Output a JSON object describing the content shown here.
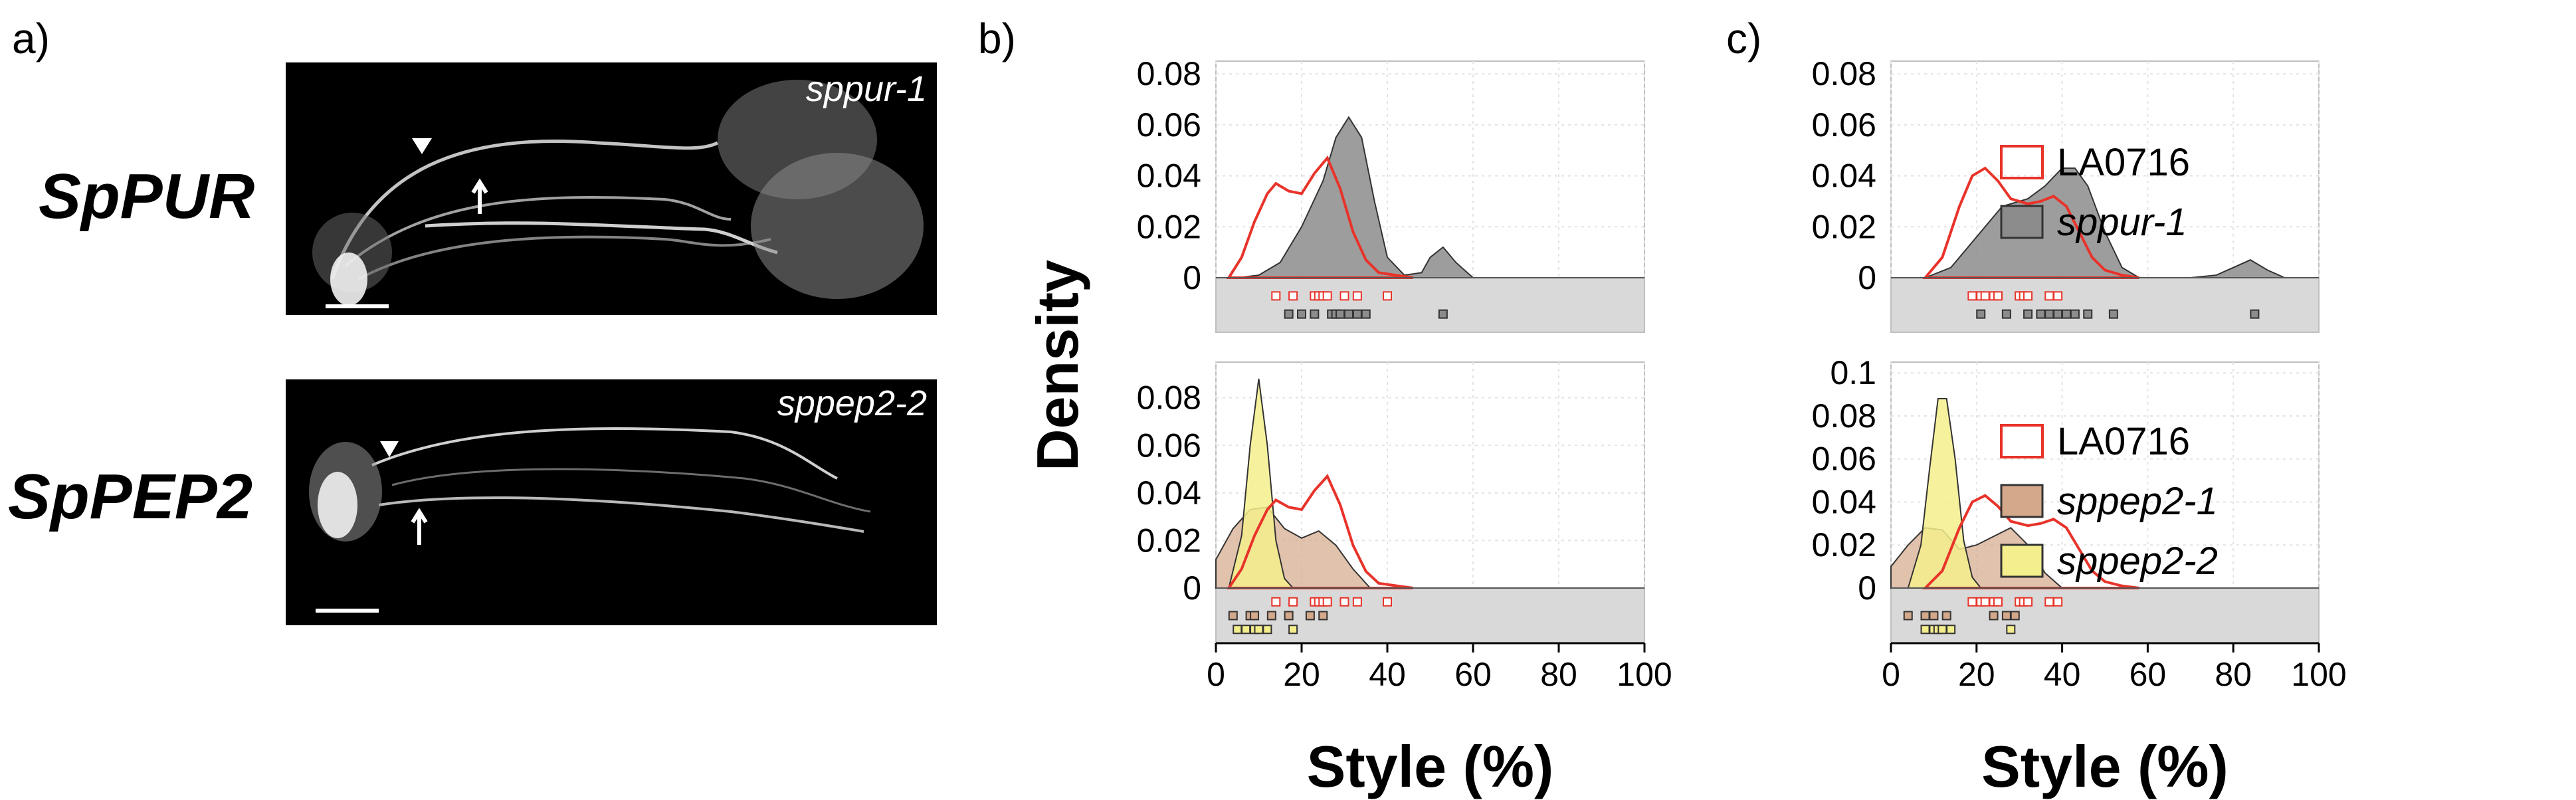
{
  "panels": {
    "a": "a)",
    "b": "b)",
    "c": "c)"
  },
  "micrographs": [
    {
      "gene": "SpPUR",
      "mutant": "sppur-1"
    },
    {
      "gene": "SpPEP2",
      "mutant": "sppep2-2"
    }
  ],
  "colors": {
    "LA0716": "#e8332a",
    "sppur-1": "#8c8c8c",
    "sppep2-1": "#d4a88a",
    "sppep2-2": "#f4ef8c",
    "strip": "#d9d9d9",
    "grid": "#e3e3e3"
  },
  "legend_top": [
    "LA0716",
    "sppur-1"
  ],
  "legend_bottom": [
    "LA0716",
    "sppep2-1",
    "sppep2-2"
  ],
  "chart_data": [
    {
      "id": "b-top",
      "type": "area",
      "xlabel": "",
      "ylabel": "Density",
      "xlim": [
        0,
        100
      ],
      "ylim": [
        0,
        0.085
      ],
      "yticks": [
        "0.08",
        "0.06",
        "0.04",
        "0.02",
        "0"
      ],
      "ytick_values": [
        0.08,
        0.06,
        0.04,
        0.02,
        0
      ],
      "series": [
        {
          "name": "sppur-1",
          "color": "#8c8c8c",
          "x": [
            5,
            10,
            15,
            20,
            25,
            28,
            31,
            34,
            37,
            40,
            44,
            48,
            50,
            53,
            56,
            60
          ],
          "y": [
            0,
            0.001,
            0.006,
            0.02,
            0.038,
            0.055,
            0.063,
            0.055,
            0.03,
            0.008,
            0.001,
            0.002,
            0.008,
            0.012,
            0.006,
            0
          ]
        },
        {
          "name": "LA0716",
          "color": "#e8332a",
          "x": [
            3,
            6,
            9,
            12,
            14,
            17,
            20,
            23,
            26,
            29,
            32,
            35,
            38,
            42,
            46
          ],
          "y": [
            0,
            0.008,
            0.022,
            0.033,
            0.037,
            0.034,
            0.033,
            0.041,
            0.047,
            0.035,
            0.018,
            0.007,
            0.002,
            0.001,
            0
          ]
        }
      ],
      "rug": [
        {
          "name": "LA0716",
          "values": [
            14,
            18,
            23,
            24,
            25,
            26,
            30,
            33,
            40
          ]
        },
        {
          "name": "sppur-1",
          "values": [
            17,
            20,
            23,
            27,
            28,
            29,
            31,
            33,
            35,
            53
          ]
        }
      ]
    },
    {
      "id": "b-bottom",
      "type": "area",
      "xlabel": "Style (%)",
      "ylabel": "Density",
      "xlim": [
        0,
        100
      ],
      "ylim": [
        0,
        0.095
      ],
      "xticks": [
        "0",
        "20",
        "40",
        "60",
        "80",
        "100"
      ],
      "xtick_values": [
        0,
        20,
        40,
        60,
        80,
        100
      ],
      "yticks": [
        "0.08",
        "0.06",
        "0.04",
        "0.02",
        "0"
      ],
      "ytick_values": [
        0.08,
        0.06,
        0.04,
        0.02,
        0
      ],
      "series": [
        {
          "name": "sppep2-1",
          "color": "#d4a88a",
          "x": [
            0,
            4,
            8,
            12,
            16,
            20,
            24,
            28,
            32,
            36
          ],
          "y": [
            0.012,
            0.025,
            0.033,
            0.034,
            0.025,
            0.021,
            0.024,
            0.018,
            0.008,
            0
          ]
        },
        {
          "name": "sppep2-2",
          "color": "#f4ef8c",
          "x": [
            3,
            6,
            8,
            10,
            12,
            14,
            16,
            18
          ],
          "y": [
            0,
            0.022,
            0.06,
            0.088,
            0.06,
            0.02,
            0.004,
            0
          ]
        },
        {
          "name": "LA0716",
          "color": "#e8332a",
          "x": [
            3,
            6,
            9,
            12,
            14,
            17,
            20,
            23,
            26,
            29,
            32,
            35,
            38,
            42,
            46
          ],
          "y": [
            0,
            0.008,
            0.022,
            0.033,
            0.037,
            0.034,
            0.033,
            0.041,
            0.047,
            0.035,
            0.018,
            0.007,
            0.002,
            0.001,
            0
          ]
        }
      ],
      "rug": [
        {
          "name": "LA0716",
          "values": [
            14,
            18,
            23,
            24,
            25,
            26,
            30,
            33,
            40
          ]
        },
        {
          "name": "sppep2-1",
          "values": [
            4,
            8,
            9,
            13,
            17,
            22,
            25
          ]
        },
        {
          "name": "sppep2-2",
          "values": [
            5,
            7,
            9,
            10,
            12,
            18
          ]
        }
      ]
    },
    {
      "id": "c-top",
      "type": "area",
      "xlabel": "",
      "ylabel": "",
      "xlim": [
        0,
        100
      ],
      "ylim": [
        0,
        0.085
      ],
      "yticks": [
        "0.08",
        "0.06",
        "0.04",
        "0.02",
        "0"
      ],
      "ytick_values": [
        0.08,
        0.06,
        0.04,
        0.02,
        0
      ],
      "series": [
        {
          "name": "sppur-1",
          "color": "#8c8c8c",
          "x": [
            8,
            14,
            20,
            26,
            32,
            36,
            40,
            43,
            46,
            50,
            54,
            58,
            64,
            70,
            76,
            80,
            84,
            88,
            92
          ],
          "y": [
            0,
            0.004,
            0.016,
            0.028,
            0.031,
            0.036,
            0.043,
            0.043,
            0.036,
            0.018,
            0.004,
            0,
            0,
            0,
            0.001,
            0.004,
            0.007,
            0.003,
            0
          ]
        },
        {
          "name": "LA0716",
          "color": "#e8332a",
          "x": [
            8,
            12,
            16,
            19,
            22,
            25,
            28,
            32,
            35,
            38,
            41,
            44,
            47,
            50,
            54,
            58
          ],
          "y": [
            0,
            0.008,
            0.028,
            0.04,
            0.043,
            0.038,
            0.031,
            0.029,
            0.03,
            0.032,
            0.028,
            0.018,
            0.008,
            0.003,
            0.001,
            0
          ]
        }
      ],
      "rug": [
        {
          "name": "LA0716",
          "values": [
            19,
            21,
            22,
            24,
            25,
            30,
            31,
            32,
            37,
            39
          ]
        },
        {
          "name": "sppur-1",
          "values": [
            21,
            27,
            32,
            35,
            37,
            39,
            41,
            43,
            46,
            52,
            85
          ]
        }
      ]
    },
    {
      "id": "c-bottom",
      "type": "area",
      "xlabel": "Style (%)",
      "ylabel": "",
      "xlim": [
        0,
        100
      ],
      "ylim": [
        0,
        0.105
      ],
      "xticks": [
        "0",
        "20",
        "40",
        "60",
        "80",
        "100"
      ],
      "xtick_values": [
        0,
        20,
        40,
        60,
        80,
        100
      ],
      "yticks": [
        "0.1",
        "0.08",
        "0.06",
        "0.04",
        "0.02",
        "0"
      ],
      "ytick_values": [
        0.1,
        0.08,
        0.06,
        0.04,
        0.02,
        0
      ],
      "series": [
        {
          "name": "sppep2-1",
          "color": "#d4a88a",
          "x": [
            0,
            4,
            8,
            12,
            16,
            20,
            24,
            28,
            32,
            36,
            40
          ],
          "y": [
            0.01,
            0.02,
            0.028,
            0.027,
            0.018,
            0.02,
            0.024,
            0.028,
            0.02,
            0.007,
            0
          ]
        },
        {
          "name": "sppep2-2",
          "color": "#f4ef8c",
          "x": [
            4,
            7,
            9,
            11,
            13,
            15,
            17,
            19,
            21
          ],
          "y": [
            0,
            0.02,
            0.055,
            0.088,
            0.088,
            0.06,
            0.022,
            0.005,
            0
          ]
        },
        {
          "name": "LA0716",
          "color": "#e8332a",
          "x": [
            8,
            12,
            16,
            19,
            22,
            25,
            28,
            32,
            35,
            38,
            41,
            44,
            47,
            50,
            54,
            58
          ],
          "y": [
            0,
            0.008,
            0.028,
            0.04,
            0.043,
            0.038,
            0.031,
            0.029,
            0.03,
            0.032,
            0.028,
            0.018,
            0.008,
            0.003,
            0.001,
            0
          ]
        }
      ],
      "rug": [
        {
          "name": "LA0716",
          "values": [
            19,
            21,
            22,
            24,
            25,
            30,
            31,
            32,
            37,
            39
          ]
        },
        {
          "name": "sppep2-1",
          "values": [
            4,
            8,
            10,
            13,
            24,
            27,
            29
          ]
        },
        {
          "name": "sppep2-2",
          "values": [
            8,
            10,
            11,
            12,
            14,
            28
          ]
        }
      ]
    }
  ]
}
